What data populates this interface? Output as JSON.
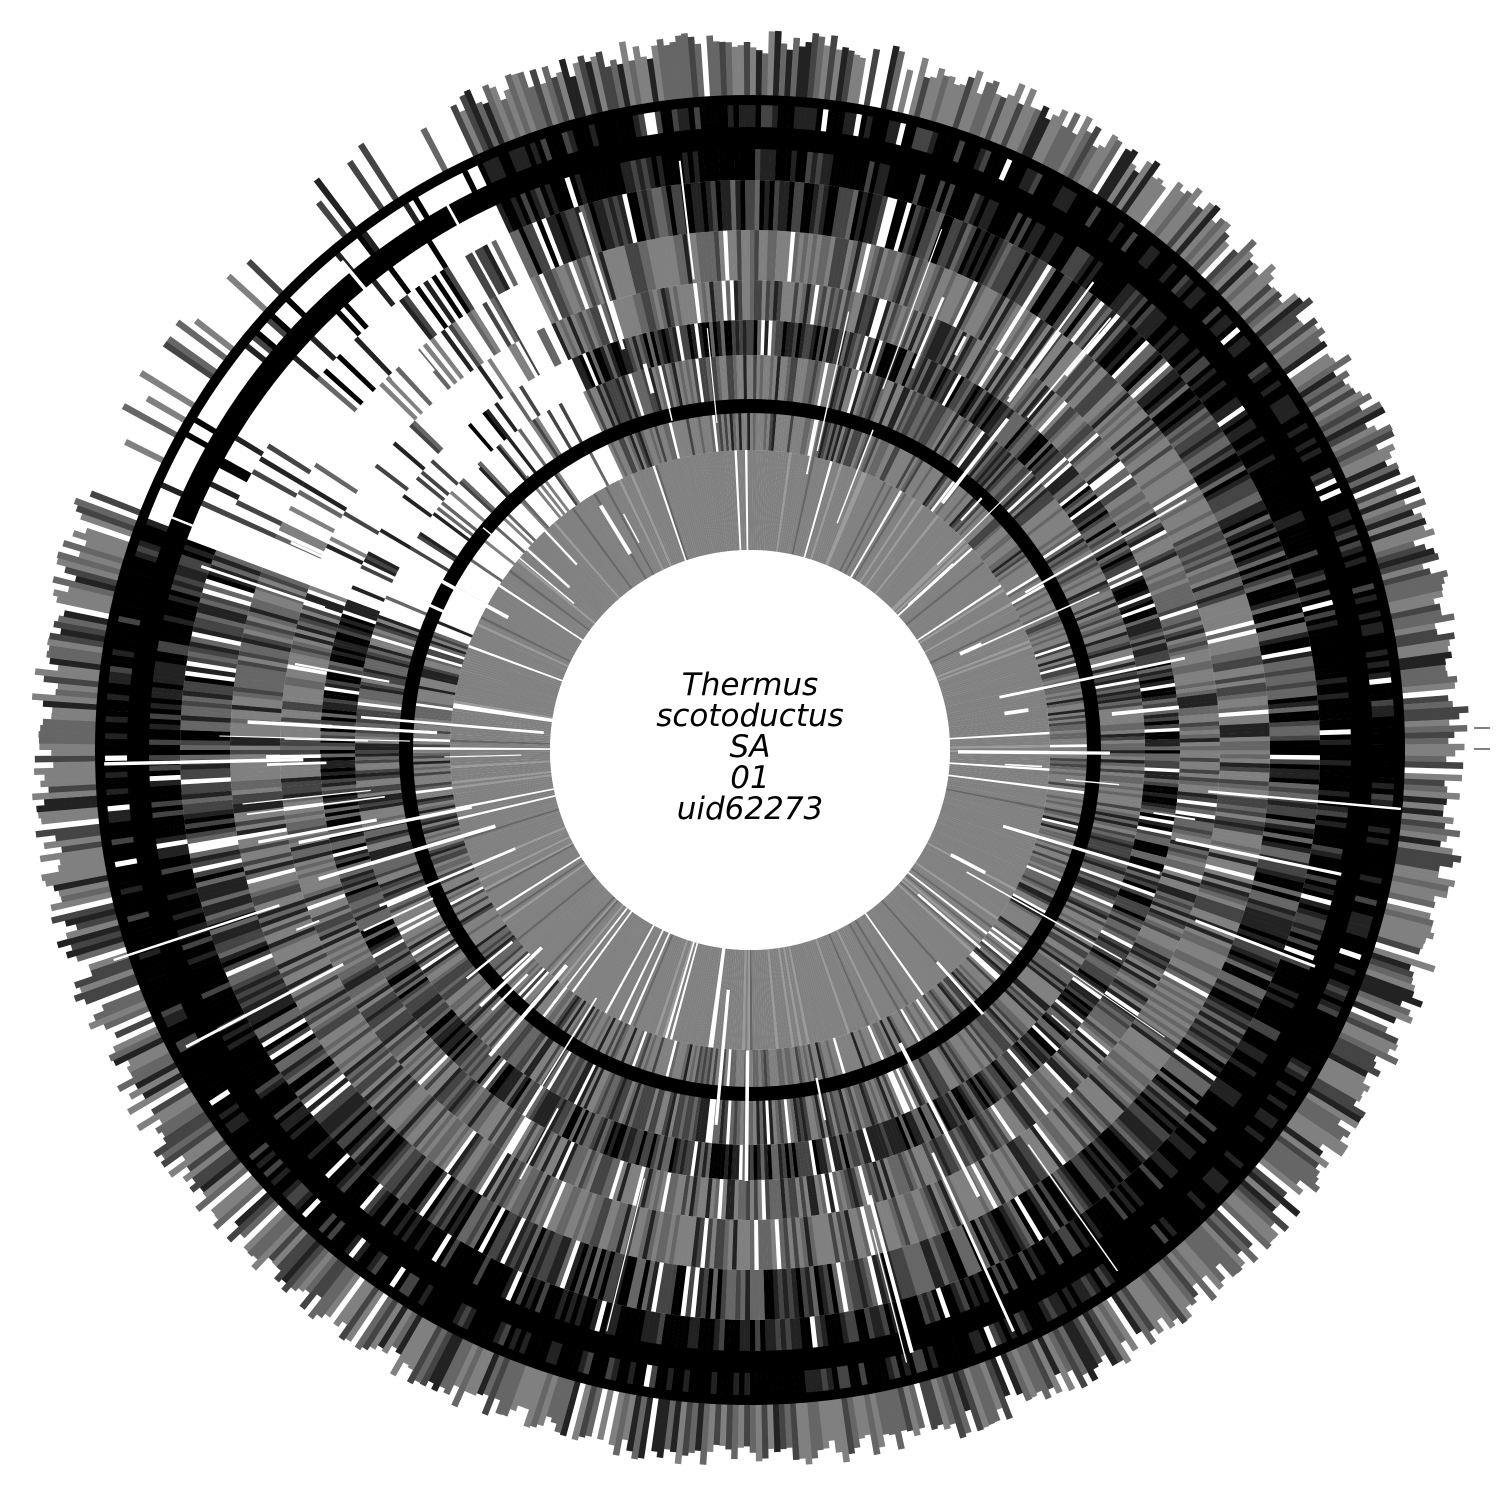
{
  "genome_label": {
    "line1": "Thermus",
    "line2": "scotoductus",
    "line3": "SA",
    "line4": "01",
    "line5": "uid62273"
  },
  "colors": {
    "background": "#ffffff",
    "black": "#000000",
    "dark": "#222222",
    "mid_dark": "#444444",
    "mid": "#666666",
    "gray": "#808080",
    "light": "#9a9a9a"
  }
}
